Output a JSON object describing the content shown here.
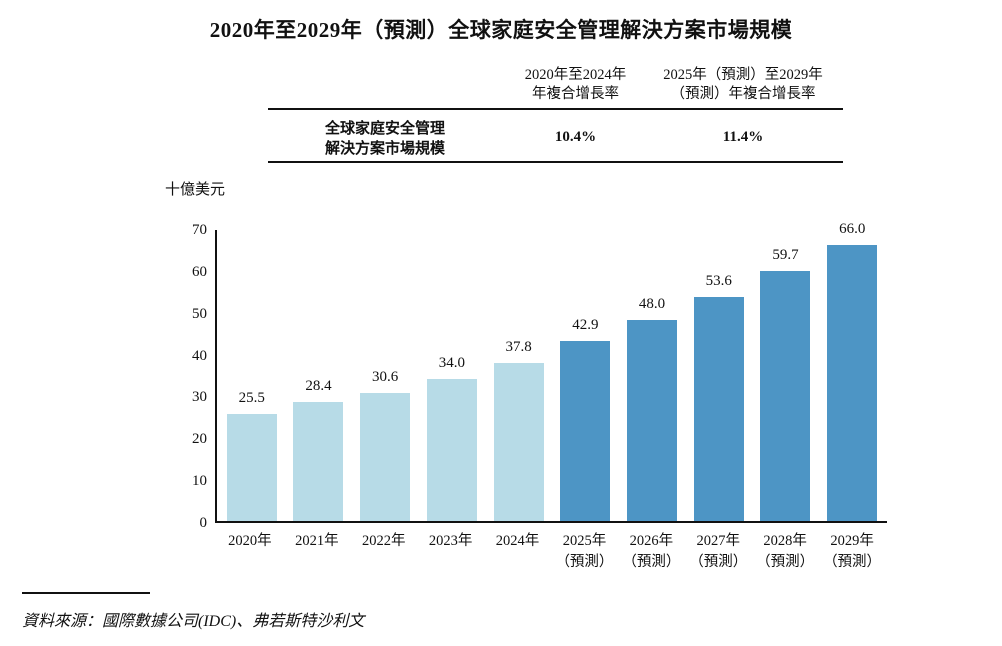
{
  "title": "2020年至2029年（預測）全球家庭安全管理解決方案市場規模",
  "cagr_table": {
    "col1_header_line1": "2020年至2024年",
    "col1_header_line2": "年複合增長率",
    "col2_header_line1": "2025年（預測）至2029年",
    "col2_header_line2": "（預測）年複合增長率",
    "row_label_line1": "全球家庭安全管理",
    "row_label_line2": "解決方案市場規模",
    "col1_value": "10.4%",
    "col2_value": "11.4%"
  },
  "chart_data": {
    "type": "bar",
    "title": "2020年至2029年（預測）全球家庭安全管理解決方案市場規模",
    "xlabel": "",
    "ylabel": "十億美元",
    "ylim": [
      0,
      70
    ],
    "yticks": [
      0,
      10,
      20,
      30,
      40,
      50,
      60,
      70
    ],
    "grid": false,
    "legend": "none",
    "categories": [
      "2020年",
      "2021年",
      "2022年",
      "2023年",
      "2024年",
      "2025年",
      "2026年",
      "2027年",
      "2028年",
      "2029年"
    ],
    "category_sublabels": [
      "",
      "",
      "",
      "",
      "",
      "（預測）",
      "（預測）",
      "（預測）",
      "（預測）",
      "（預測）"
    ],
    "values": [
      25.5,
      28.4,
      30.6,
      34.0,
      37.8,
      42.9,
      48.0,
      53.6,
      59.7,
      66.0
    ],
    "forecast_flags": [
      false,
      false,
      false,
      false,
      false,
      true,
      true,
      true,
      true,
      true
    ],
    "colors": {
      "actual": "#b7dbe7",
      "forecast": "#4d95c5",
      "axis": "#111111"
    }
  },
  "source": "資料來源：國際數據公司(IDC)、弗若斯特沙利文"
}
